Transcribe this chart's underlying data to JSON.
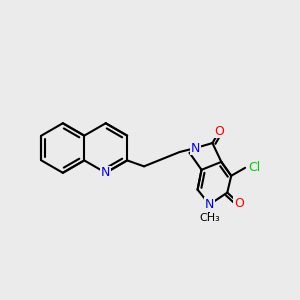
{
  "background_color": "#ebebeb",
  "bond_color": "#000000",
  "bond_width": 1.5,
  "atom_colors": {
    "N": "#0000ff",
    "O": "#ff0000",
    "Cl": "#00cc00",
    "C": "#000000"
  },
  "figsize": [
    3.0,
    3.0
  ],
  "dpi": 100
}
